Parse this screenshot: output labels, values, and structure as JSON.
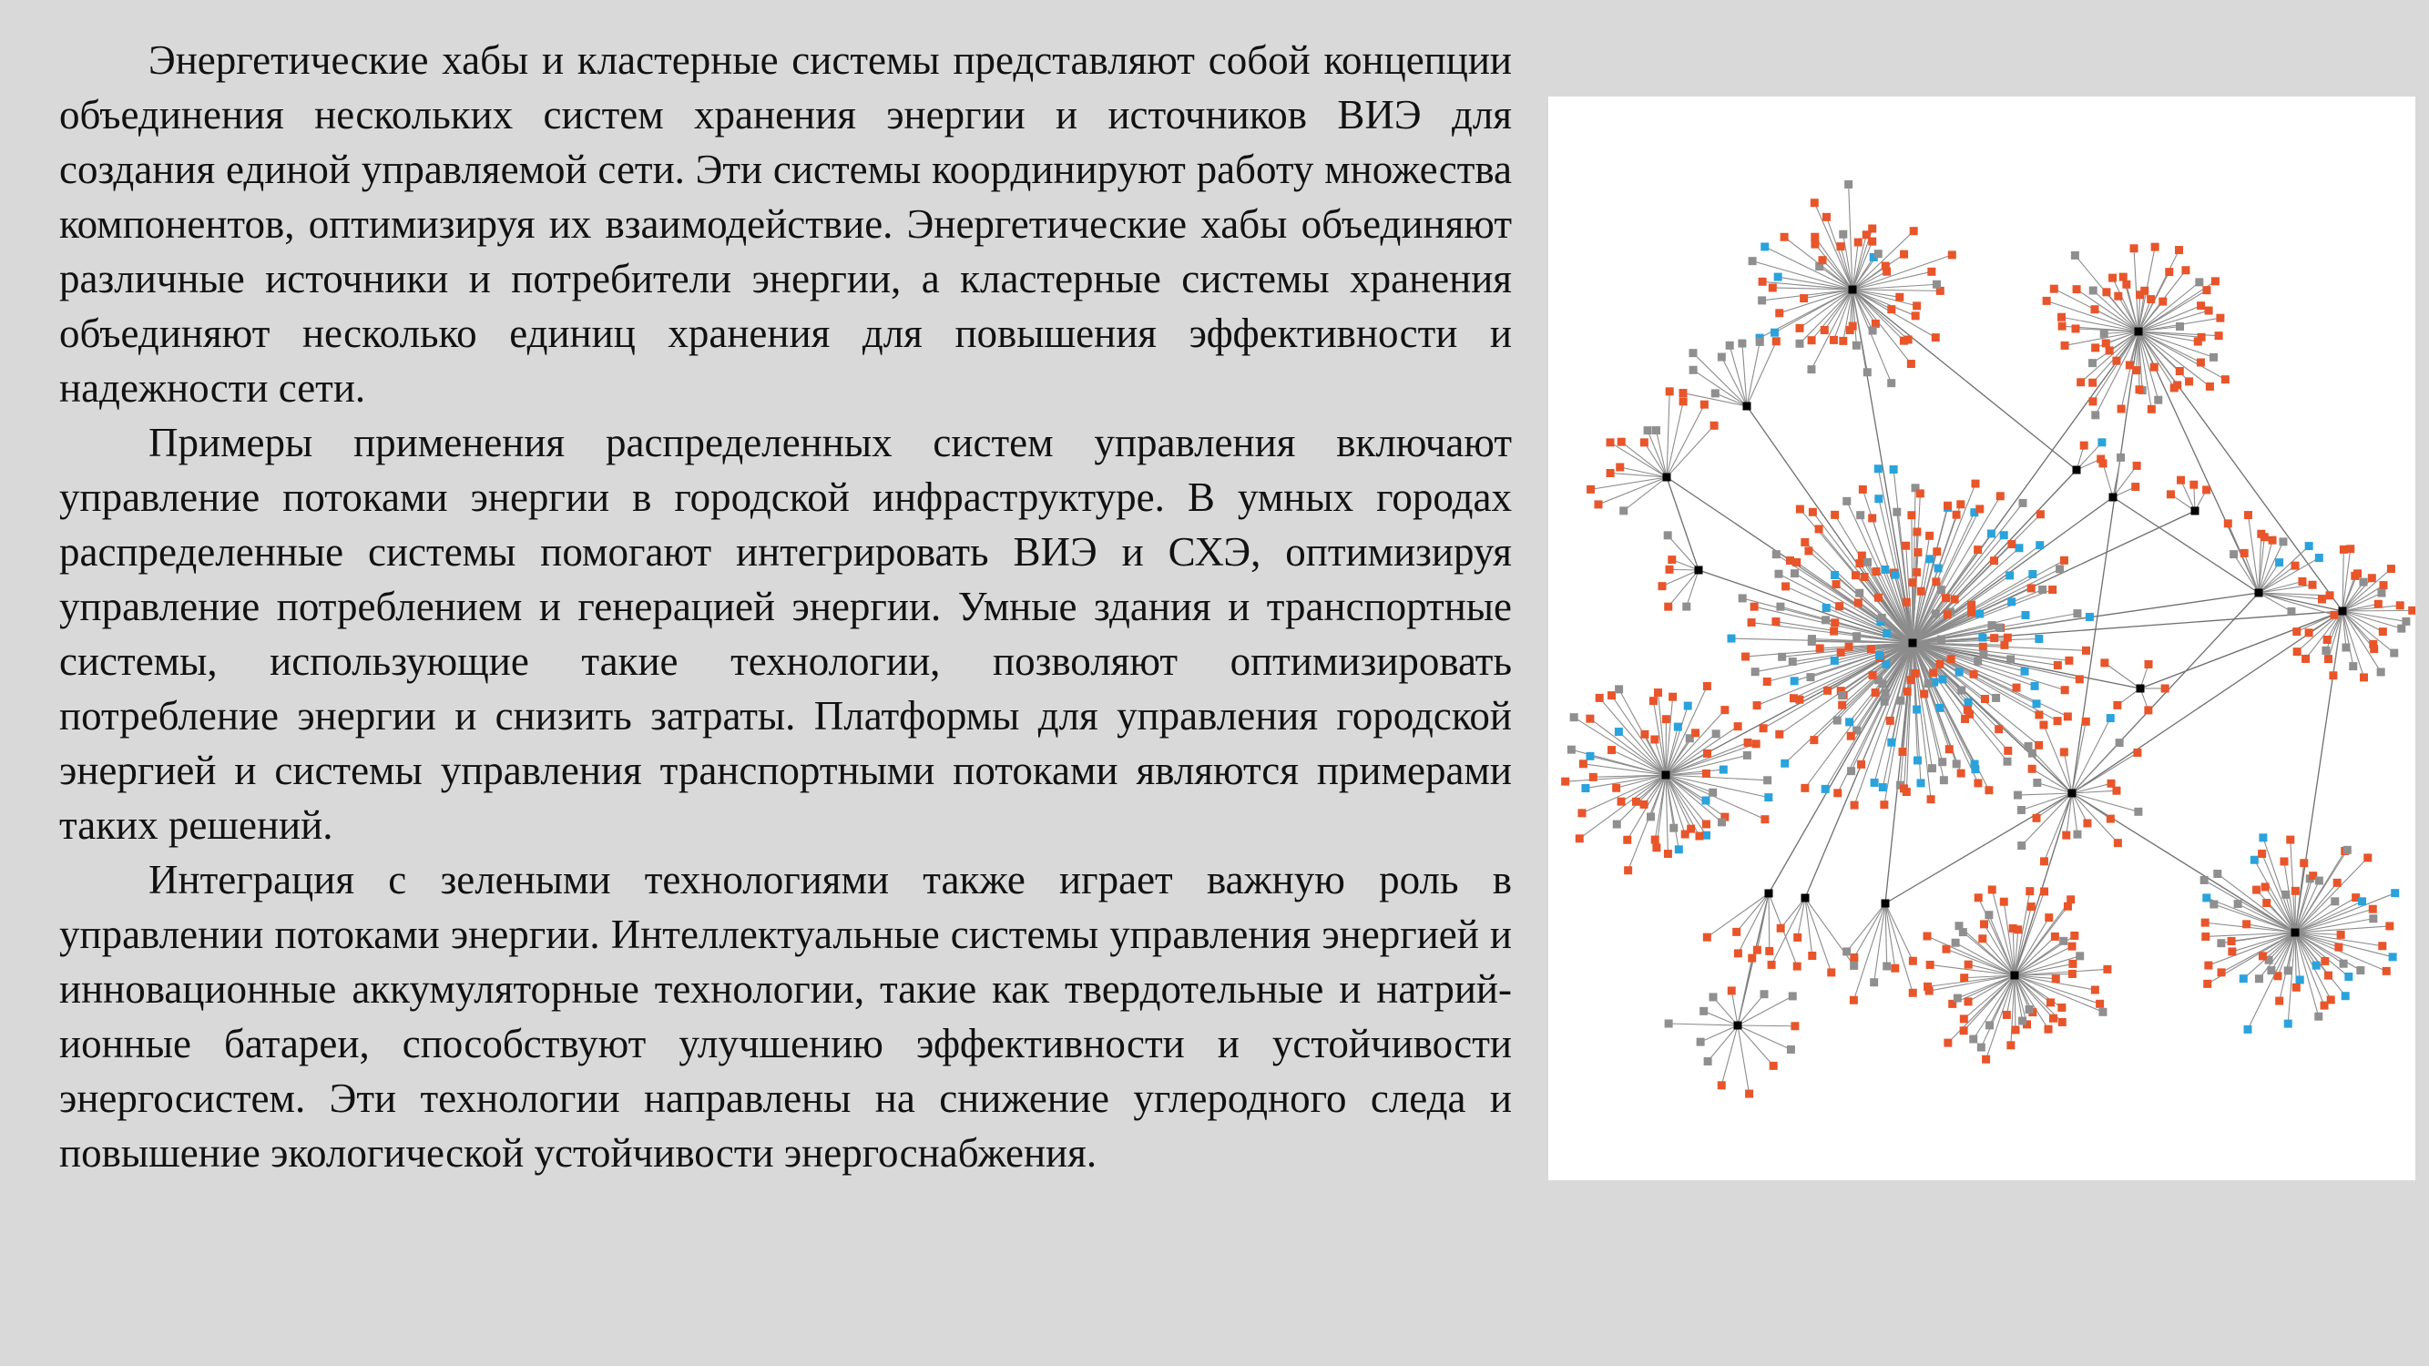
{
  "document": {
    "paragraphs": [
      "Энергетические хабы и кластерные системы представляют собой концепции объединения нескольких систем хранения энергии и источников ВИЭ для создания единой управляемой сети. Эти системы координируют работу множества компонентов, оптимизируя их взаимодействие. Энергетические хабы объединяют различные источники и потребители энергии, а кластерные системы хранения объединяют несколько единиц хранения для повышения эффективности и надежности сети.",
      "Примеры применения распределенных систем управления включают управление потоками энергии в городской инфраструктуре. В умных городах распределенные системы помогают интегрировать ВИЭ и СХЭ, оптимизируя управление потреблением и генерацией энергии. Умные здания и транспортные системы, использующие такие технологии, позволяют оптимизировать потребление энергии и снизить затраты. Платформы для управления городской энергией и системы управления транспортными потоками являются примерами таких решений.",
      "Интеграция с зелеными технологиями также играет важную роль в управлении потоками энергии. Интеллектуальные системы управления энергией и инновационные аккумуляторные технологии, такие как твердотельные и натрий-ионные батареи, способствуют улучшению эффективности и устойчивости энергосистем. Эти технологии направлены на снижение углеродного следа и повышение экологической устойчивости энергоснабжения."
    ]
  },
  "figure": {
    "colors": {
      "background": "#ffffff",
      "edge": "#8c8c8c",
      "hub_node": "#000000",
      "leaf_orange": "#e8552a",
      "leaf_gray": "#8f8f8f",
      "leaf_blue": "#2aa3dc"
    }
  }
}
